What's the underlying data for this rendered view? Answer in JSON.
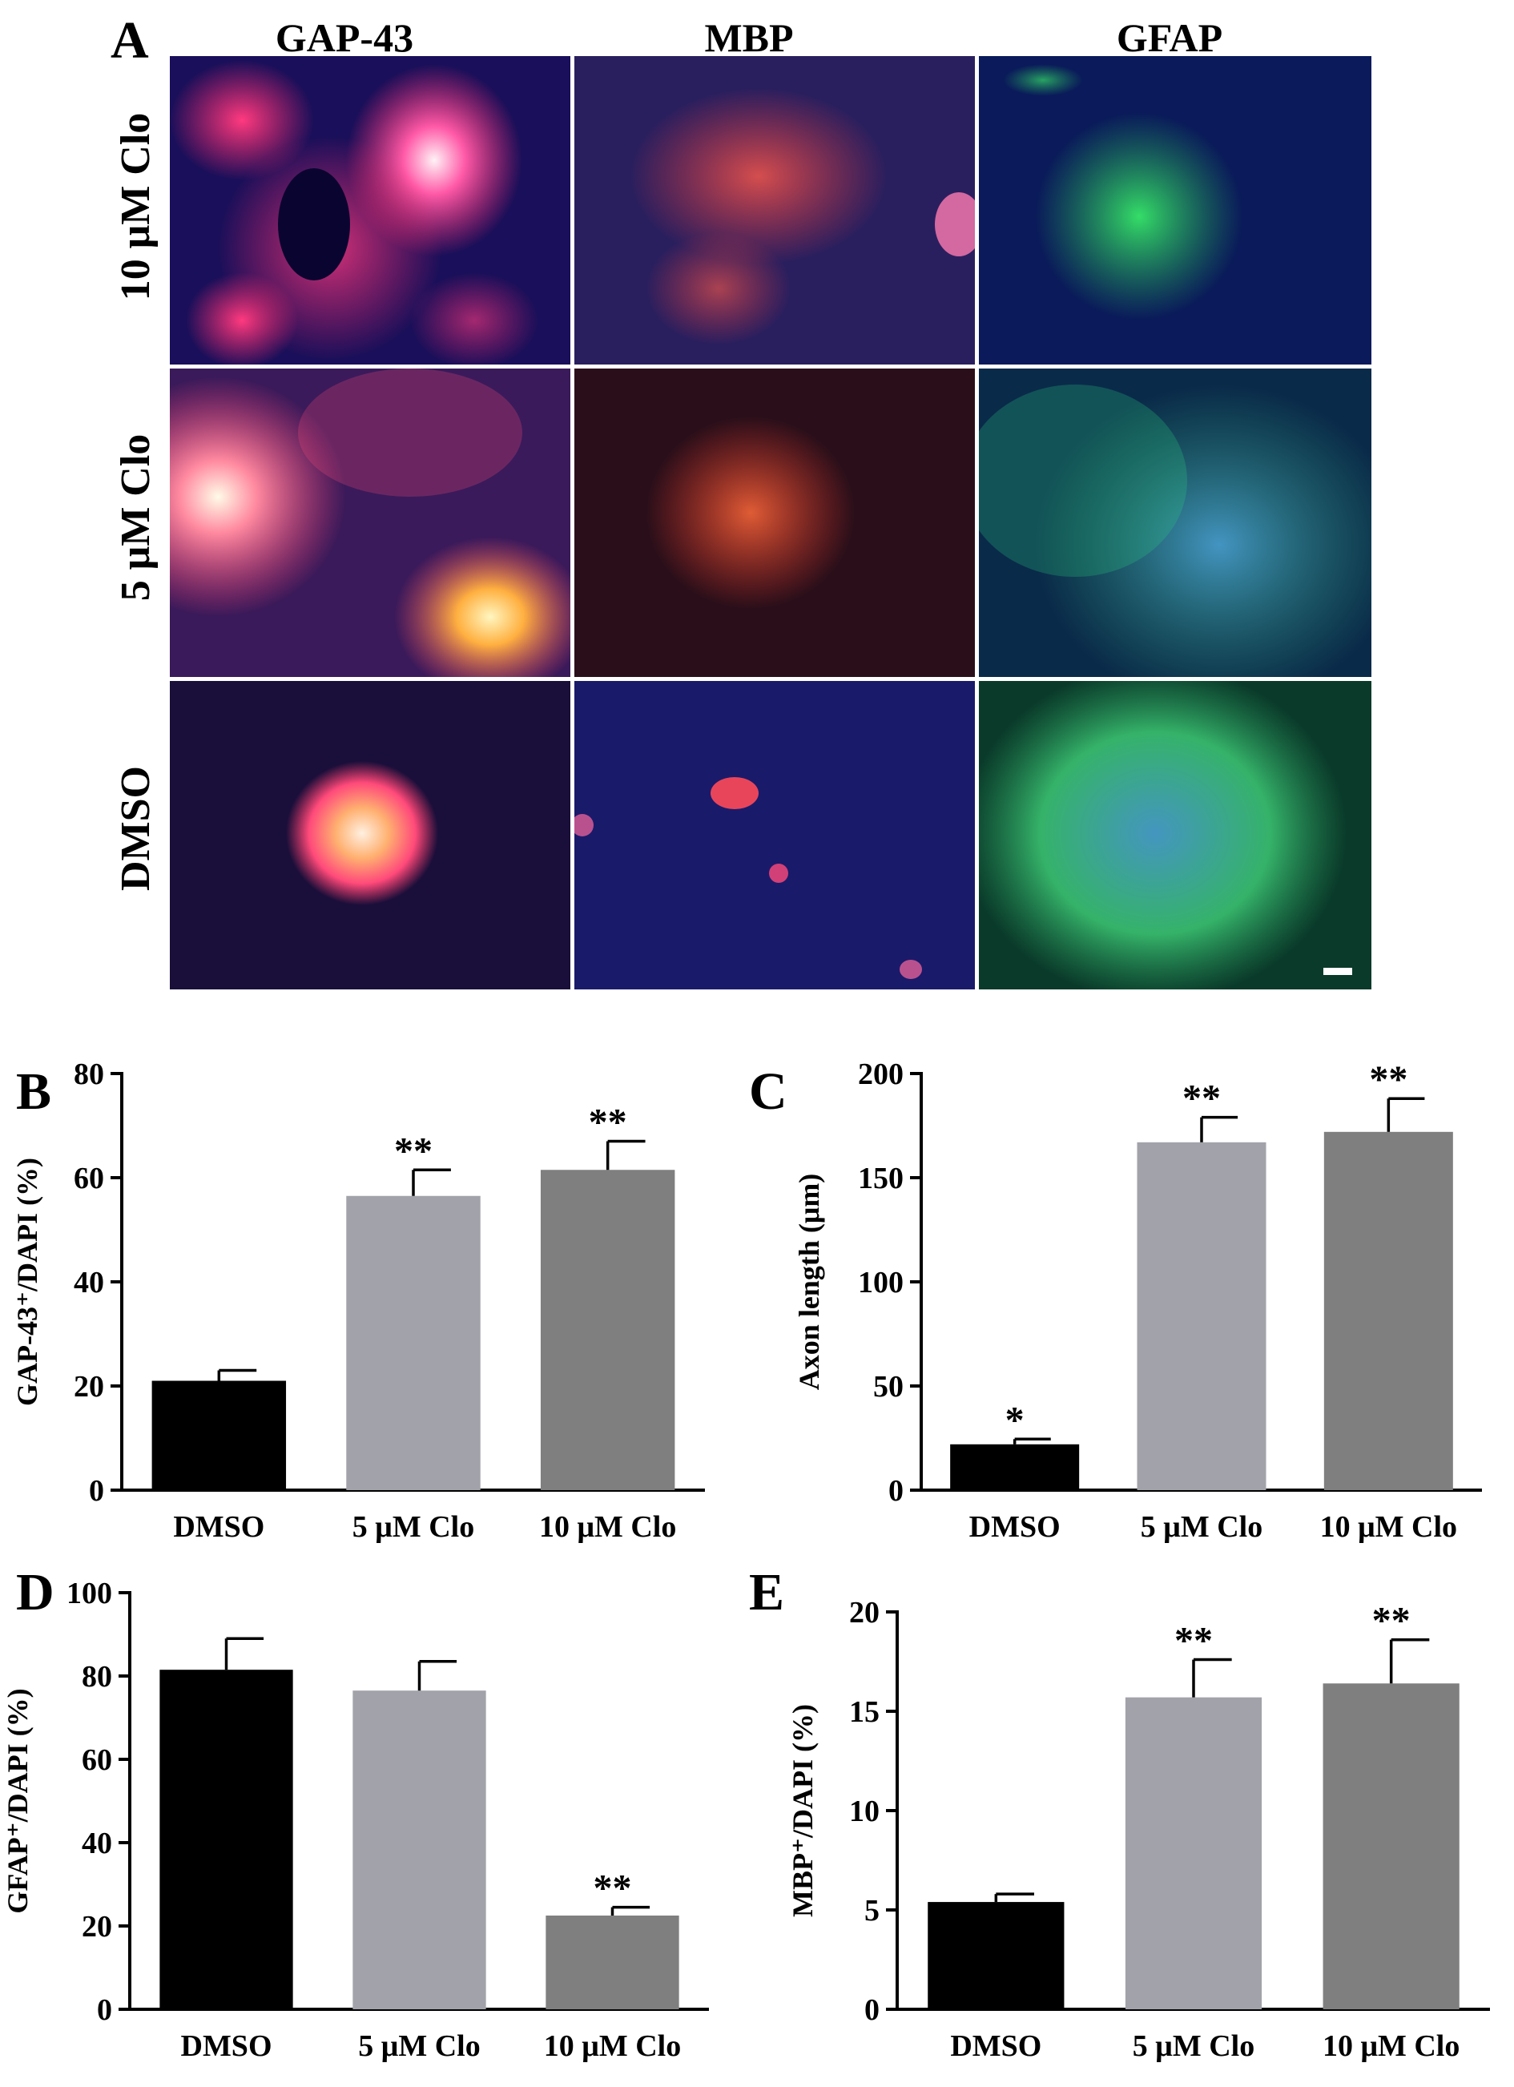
{
  "panel_a": {
    "letter": "A",
    "columns": [
      "GAP-43",
      "MBP",
      "GFAP"
    ],
    "rows": [
      "10 μM Clo",
      "5 μM Clo",
      "DMSO"
    ]
  },
  "colors": {
    "dmso": "#000000",
    "clo5": "#a2a2aa",
    "clo10": "#7f7f7f"
  },
  "chart_data": [
    {
      "panel": "B",
      "type": "bar",
      "categories": [
        "DMSO",
        "5 μM Clo",
        "10 μM Clo"
      ],
      "values": [
        21,
        56.5,
        61.5
      ],
      "errors": [
        2,
        5,
        5.5
      ],
      "significance": [
        "",
        "**",
        "**"
      ],
      "ylabel": "GAP-43⁺/DAPI (%)",
      "ylim": [
        0,
        80
      ],
      "yticks": [
        0,
        20,
        40,
        60,
        80
      ]
    },
    {
      "panel": "C",
      "type": "bar",
      "categories": [
        "DMSO",
        "5 μM Clo",
        "10 μM Clo"
      ],
      "values": [
        22,
        167,
        172
      ],
      "errors": [
        2.5,
        12,
        16
      ],
      "significance": [
        "*",
        "**",
        "**"
      ],
      "ylabel": "Axon length (μm)",
      "ylim": [
        0,
        200
      ],
      "yticks": [
        0,
        50,
        100,
        150,
        200
      ]
    },
    {
      "panel": "D",
      "type": "bar",
      "categories": [
        "DMSO",
        "5 μM Clo",
        "10 μM Clo"
      ],
      "values": [
        81.5,
        76.5,
        22.5
      ],
      "errors": [
        7.5,
        7,
        2
      ],
      "significance": [
        "",
        "",
        "**"
      ],
      "ylabel": "GFAP⁺/DAPI (%)",
      "ylim": [
        0,
        100
      ],
      "yticks": [
        0,
        20,
        40,
        60,
        80,
        100
      ]
    },
    {
      "panel": "E",
      "type": "bar",
      "categories": [
        "DMSO",
        "5 μM Clo",
        "10 μM Clo"
      ],
      "values": [
        5.4,
        15.7,
        16.4
      ],
      "errors": [
        0.4,
        1.9,
        2.2
      ],
      "significance": [
        "",
        "**",
        "**"
      ],
      "ylabel": "MBP⁺/DAPI (%)",
      "ylim": [
        0,
        20
      ],
      "yticks": [
        0,
        5,
        10,
        15,
        20
      ]
    }
  ]
}
